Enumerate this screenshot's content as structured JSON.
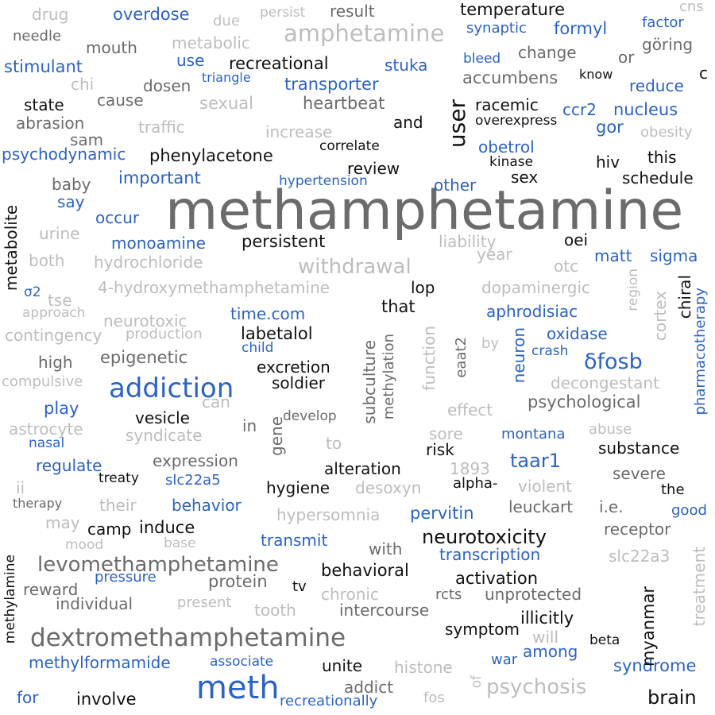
{
  "palette": {
    "dark": "#6b6b6b",
    "light": "#bdbdbd",
    "blue": "#2b63c3",
    "black": "#111111"
  },
  "words": [
    {
      "text": "methamphetamine",
      "color": "dark"
    },
    {
      "text": "meth",
      "color": "blue"
    },
    {
      "text": "dextromethamphetamine",
      "color": "dark"
    },
    {
      "text": "addiction",
      "color": "blue"
    },
    {
      "text": "amphetamine",
      "color": "light"
    },
    {
      "text": "levomethamphetamine",
      "color": "dark"
    },
    {
      "text": "psychosis",
      "color": "light"
    },
    {
      "text": "withdrawal",
      "color": "light"
    },
    {
      "text": "user",
      "color": "black"
    },
    {
      "text": "δfosb",
      "color": "blue"
    },
    {
      "text": "neurotoxicity",
      "color": "black"
    },
    {
      "text": "taar1",
      "color": "blue"
    },
    {
      "text": "brain",
      "color": "black"
    },
    {
      "text": "syndrome",
      "color": "blue"
    },
    {
      "text": "treatment",
      "color": "light"
    },
    {
      "text": "myanmar",
      "color": "black"
    },
    {
      "text": "metabolite",
      "color": "black"
    },
    {
      "text": "psychodynamic",
      "color": "blue"
    },
    {
      "text": "stimulant",
      "color": "blue"
    },
    {
      "text": "phenylacetone",
      "color": "black"
    },
    {
      "text": "recreational",
      "color": "black"
    },
    {
      "text": "temperature",
      "color": "black"
    },
    {
      "text": "overdose",
      "color": "blue"
    },
    {
      "text": "drug",
      "color": "light"
    },
    {
      "text": "needle",
      "color": "dark"
    },
    {
      "text": "due",
      "color": "light"
    },
    {
      "text": "persist",
      "color": "light"
    },
    {
      "text": "result",
      "color": "dark"
    },
    {
      "text": "cns",
      "color": "light"
    },
    {
      "text": "factor",
      "color": "blue"
    },
    {
      "text": "synaptic",
      "color": "blue"
    },
    {
      "text": "formyl",
      "color": "blue"
    },
    {
      "text": "mouth",
      "color": "dark"
    },
    {
      "text": "metabolic",
      "color": "light"
    },
    {
      "text": "bleed",
      "color": "blue"
    },
    {
      "text": "change",
      "color": "dark"
    },
    {
      "text": "or",
      "color": "dark"
    },
    {
      "text": "göring",
      "color": "dark"
    },
    {
      "text": "use",
      "color": "blue"
    },
    {
      "text": "stuka",
      "color": "blue"
    },
    {
      "text": "know",
      "color": "black"
    },
    {
      "text": "c",
      "color": "black"
    },
    {
      "text": "chi",
      "color": "light"
    },
    {
      "text": "dosen",
      "color": "dark"
    },
    {
      "text": "triangle",
      "color": "blue"
    },
    {
      "text": "transporter",
      "color": "blue"
    },
    {
      "text": "accumbens",
      "color": "dark"
    },
    {
      "text": "reduce",
      "color": "blue"
    },
    {
      "text": "state",
      "color": "black"
    },
    {
      "text": "cause",
      "color": "dark"
    },
    {
      "text": "sexual",
      "color": "light"
    },
    {
      "text": "heartbeat",
      "color": "dark"
    },
    {
      "text": "racemic",
      "color": "black"
    },
    {
      "text": "ccr2",
      "color": "blue"
    },
    {
      "text": "nucleus",
      "color": "blue"
    },
    {
      "text": "abrasion",
      "color": "dark"
    },
    {
      "text": "traffic",
      "color": "light"
    },
    {
      "text": "increase",
      "color": "light"
    },
    {
      "text": "and",
      "color": "black"
    },
    {
      "text": "overexpress",
      "color": "black"
    },
    {
      "text": "gor",
      "color": "blue"
    },
    {
      "text": "obesity",
      "color": "light"
    },
    {
      "text": "sam",
      "color": "dark"
    },
    {
      "text": "correlate",
      "color": "black"
    },
    {
      "text": "obetrol",
      "color": "blue"
    },
    {
      "text": "this",
      "color": "black"
    },
    {
      "text": "kinase",
      "color": "black"
    },
    {
      "text": "hiv",
      "color": "black"
    },
    {
      "text": "review",
      "color": "black"
    },
    {
      "text": "baby",
      "color": "dark"
    },
    {
      "text": "important",
      "color": "blue"
    },
    {
      "text": "hypertension",
      "color": "blue"
    },
    {
      "text": "other",
      "color": "blue"
    },
    {
      "text": "sex",
      "color": "black"
    },
    {
      "text": "schedule",
      "color": "black"
    },
    {
      "text": "say",
      "color": "blue"
    },
    {
      "text": "occur",
      "color": "blue"
    },
    {
      "text": "urine",
      "color": "light"
    },
    {
      "text": "monoamine",
      "color": "blue"
    },
    {
      "text": "persistent",
      "color": "black"
    },
    {
      "text": "liability",
      "color": "light"
    },
    {
      "text": "oei",
      "color": "black"
    },
    {
      "text": "both",
      "color": "light"
    },
    {
      "text": "hydrochloride",
      "color": "light"
    },
    {
      "text": "year",
      "color": "light"
    },
    {
      "text": "otc",
      "color": "light"
    },
    {
      "text": "matt",
      "color": "blue"
    },
    {
      "text": "sigma",
      "color": "blue"
    },
    {
      "text": "4-hydroxymethamphetamine",
      "color": "light"
    },
    {
      "text": "lop",
      "color": "black"
    },
    {
      "text": "dopaminergic",
      "color": "light"
    },
    {
      "text": "region",
      "color": "light"
    },
    {
      "text": "cortex",
      "color": "light"
    },
    {
      "text": "chiral",
      "color": "black"
    },
    {
      "text": "σ2",
      "color": "blue"
    },
    {
      "text": "tse",
      "color": "light"
    },
    {
      "text": "approach",
      "color": "light"
    },
    {
      "text": "that",
      "color": "black"
    },
    {
      "text": "time.com",
      "color": "blue"
    },
    {
      "text": "aphrodisiac",
      "color": "blue"
    },
    {
      "text": "pharmacotherapy",
      "color": "blue"
    },
    {
      "text": "neurotoxic",
      "color": "light"
    },
    {
      "text": "contingency",
      "color": "light"
    },
    {
      "text": "production",
      "color": "light"
    },
    {
      "text": "labetalol",
      "color": "black"
    },
    {
      "text": "oxidase",
      "color": "blue"
    },
    {
      "text": "child",
      "color": "blue"
    },
    {
      "text": "by",
      "color": "light"
    },
    {
      "text": "crash",
      "color": "blue"
    },
    {
      "text": "high",
      "color": "dark"
    },
    {
      "text": "epigenetic",
      "color": "dark"
    },
    {
      "text": "excretion",
      "color": "black"
    },
    {
      "text": "function",
      "color": "light"
    },
    {
      "text": "eaat2",
      "color": "dark"
    },
    {
      "text": "neuron",
      "color": "blue"
    },
    {
      "text": "compulsive",
      "color": "light"
    },
    {
      "text": "soldier",
      "color": "black"
    },
    {
      "text": "subculture",
      "color": "dark"
    },
    {
      "text": "methylation",
      "color": "dark"
    },
    {
      "text": "decongestant",
      "color": "light"
    },
    {
      "text": "play",
      "color": "blue"
    },
    {
      "text": "can",
      "color": "light"
    },
    {
      "text": "develop",
      "color": "dark"
    },
    {
      "text": "effect",
      "color": "light"
    },
    {
      "text": "psychological",
      "color": "dark"
    },
    {
      "text": "vesicle",
      "color": "black"
    },
    {
      "text": "gene",
      "color": "dark"
    },
    {
      "text": "astrocyte",
      "color": "light"
    },
    {
      "text": "syndicate",
      "color": "light"
    },
    {
      "text": "in",
      "color": "dark"
    },
    {
      "text": "sore",
      "color": "light"
    },
    {
      "text": "montana",
      "color": "blue"
    },
    {
      "text": "abuse",
      "color": "light"
    },
    {
      "text": "nasal",
      "color": "blue"
    },
    {
      "text": "to",
      "color": "light"
    },
    {
      "text": "risk",
      "color": "black"
    },
    {
      "text": "substance",
      "color": "black"
    },
    {
      "text": "expression",
      "color": "dark"
    },
    {
      "text": "regulate",
      "color": "blue"
    },
    {
      "text": "alteration",
      "color": "black"
    },
    {
      "text": "1893",
      "color": "light"
    },
    {
      "text": "severe",
      "color": "dark"
    },
    {
      "text": "treaty",
      "color": "black"
    },
    {
      "text": "slc22a5",
      "color": "blue"
    },
    {
      "text": "hygiene",
      "color": "black"
    },
    {
      "text": "desoxyn",
      "color": "light"
    },
    {
      "text": "alpha-",
      "color": "black"
    },
    {
      "text": "violent",
      "color": "light"
    },
    {
      "text": "the",
      "color": "black"
    },
    {
      "text": "ii",
      "color": "light"
    },
    {
      "text": "therapy",
      "color": "dark"
    },
    {
      "text": "their",
      "color": "light"
    },
    {
      "text": "behavior",
      "color": "blue"
    },
    {
      "text": "leuckart",
      "color": "dark"
    },
    {
      "text": "i.e.",
      "color": "dark"
    },
    {
      "text": "good",
      "color": "blue"
    },
    {
      "text": "hypersomnia",
      "color": "light"
    },
    {
      "text": "pervitin",
      "color": "blue"
    },
    {
      "text": "may",
      "color": "light"
    },
    {
      "text": "camp",
      "color": "black"
    },
    {
      "text": "induce",
      "color": "black"
    },
    {
      "text": "receptor",
      "color": "dark"
    },
    {
      "text": "transmit",
      "color": "blue"
    },
    {
      "text": "mood",
      "color": "light"
    },
    {
      "text": "base",
      "color": "light"
    },
    {
      "text": "with",
      "color": "dark"
    },
    {
      "text": "transcription",
      "color": "blue"
    },
    {
      "text": "slc22a3",
      "color": "light"
    },
    {
      "text": "behavioral",
      "color": "black"
    },
    {
      "text": "methylamine",
      "color": "black"
    },
    {
      "text": "activation",
      "color": "black"
    },
    {
      "text": "reward",
      "color": "dark"
    },
    {
      "text": "pressure",
      "color": "blue"
    },
    {
      "text": "protein",
      "color": "dark"
    },
    {
      "text": "tv",
      "color": "black"
    },
    {
      "text": "chronic",
      "color": "light"
    },
    {
      "text": "rcts",
      "color": "dark"
    },
    {
      "text": "unprotected",
      "color": "dark"
    },
    {
      "text": "individual",
      "color": "dark"
    },
    {
      "text": "present",
      "color": "light"
    },
    {
      "text": "tooth",
      "color": "light"
    },
    {
      "text": "intercourse",
      "color": "dark"
    },
    {
      "text": "illicitly",
      "color": "black"
    },
    {
      "text": "symptom",
      "color": "black"
    },
    {
      "text": "will",
      "color": "light"
    },
    {
      "text": "beta",
      "color": "black"
    },
    {
      "text": "among",
      "color": "blue"
    },
    {
      "text": "methylformamide",
      "color": "blue"
    },
    {
      "text": "associate",
      "color": "blue"
    },
    {
      "text": "unite",
      "color": "black"
    },
    {
      "text": "war",
      "color": "blue"
    },
    {
      "text": "histone",
      "color": "light"
    },
    {
      "text": "of",
      "color": "light"
    },
    {
      "text": "addict",
      "color": "dark"
    },
    {
      "text": "for",
      "color": "blue"
    },
    {
      "text": "involve",
      "color": "black"
    },
    {
      "text": "recreationally",
      "color": "blue"
    },
    {
      "text": "fos",
      "color": "light"
    }
  ]
}
